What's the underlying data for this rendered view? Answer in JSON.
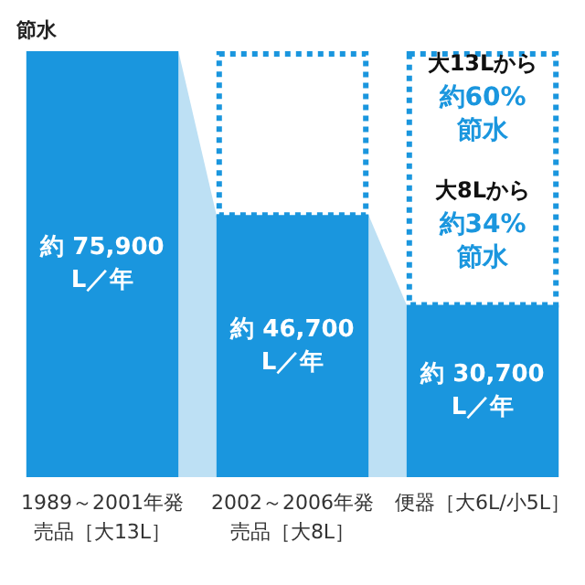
{
  "chart_data": {
    "type": "bar",
    "ylabel": "節水",
    "categories": [
      "1989～2001年発売品［大13L］",
      "2002～2006年発売品［大8L］",
      "便器［大6L/小5L］"
    ],
    "values": [
      75900,
      46700,
      30700
    ],
    "value_labels": [
      "約 75,900\nL／年",
      "約 46,700\nL／年",
      "約 30,700\nL／年"
    ],
    "color": "#1a96de",
    "annotations": [
      "大13Lから",
      "約60%節水",
      "大8Lから",
      "約34%節水"
    ]
  }
}
